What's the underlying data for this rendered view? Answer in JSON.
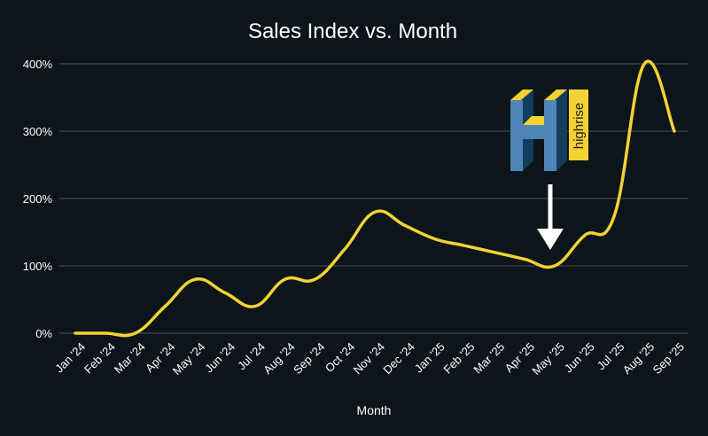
{
  "chart_data": {
    "type": "line",
    "title": "Sales Index vs. Month",
    "xlabel": "Month",
    "ylabel": "",
    "ylim": [
      0,
      400
    ],
    "y_ticks": [
      0,
      100,
      200,
      300,
      400
    ],
    "y_tick_format": "%",
    "grid": true,
    "categories": [
      "Jan '24",
      "Feb '24",
      "Mar '24",
      "Apr '24",
      "May '24",
      "Jun '24",
      "Jul '24",
      "Aug '24",
      "Sep '24",
      "Oct '24",
      "Nov '24",
      "Dec '24",
      "Jan '25",
      "Feb '25",
      "Mar '25",
      "Apr '25",
      "May '25",
      "Jun '25",
      "Jul '25",
      "Aug '25",
      "Sep '25"
    ],
    "series": [
      {
        "name": "Sales Index",
        "color": "#f2d234",
        "values": [
          0,
          0,
          0,
          40,
          80,
          60,
          40,
          80,
          80,
          125,
          180,
          160,
          140,
          130,
          120,
          110,
          100,
          145,
          175,
          400,
          300
        ]
      }
    ],
    "annotations": [
      {
        "type": "logo",
        "text": "highrise",
        "at_category": "May '25"
      },
      {
        "type": "arrow",
        "at_category": "May '25",
        "direction": "down",
        "color": "#ffffff"
      }
    ]
  },
  "colors": {
    "background": "#0c1519",
    "line": "#f2d234",
    "grid": "#4a5358",
    "logo_blue": "#4f86b5",
    "logo_dark": "#143c5c",
    "logo_yellow": "#f2d234"
  }
}
